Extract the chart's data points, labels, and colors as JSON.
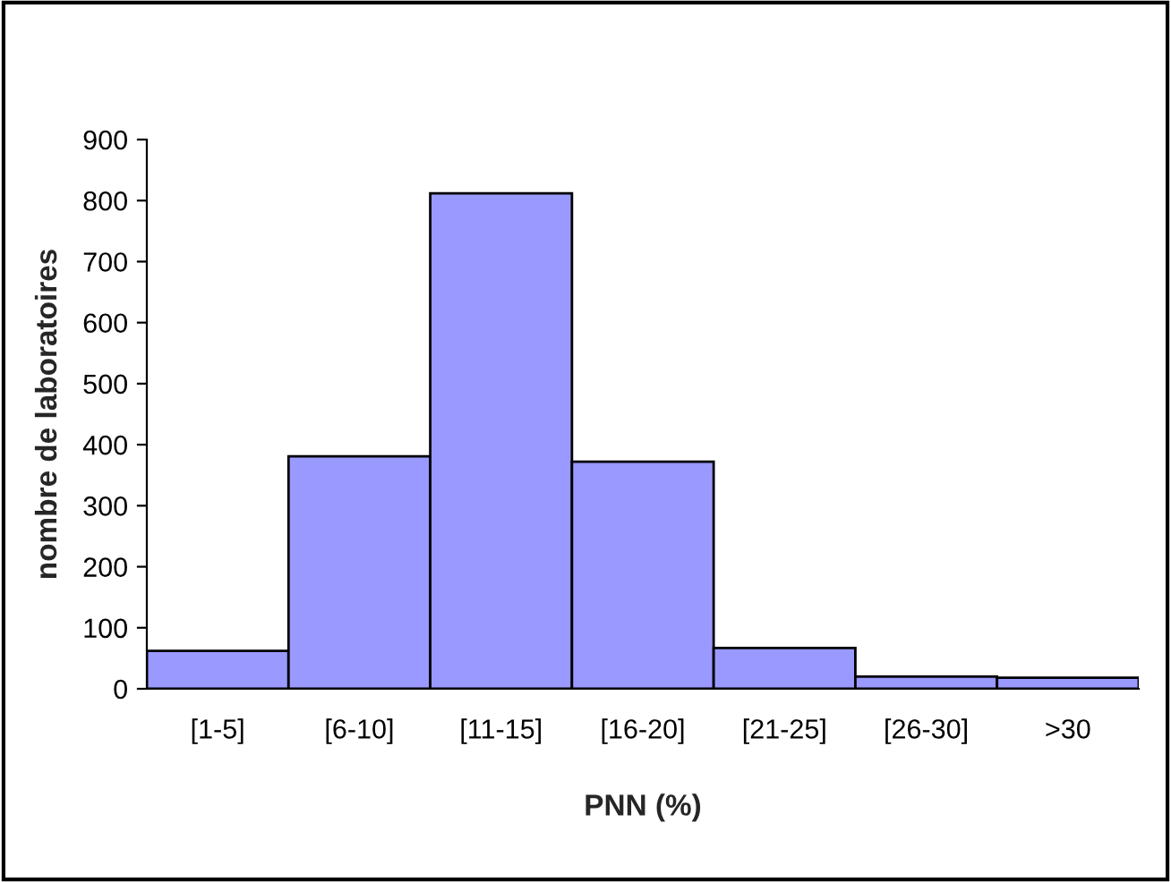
{
  "chart_data": {
    "type": "bar",
    "xlabel": "PNN (%)",
    "ylabel": "nombre de laboratoires",
    "categories": [
      "[1-5]",
      "[6-10]",
      "[11-15]",
      "[16-20]",
      "[21-25]",
      "[26-30]",
      ">30"
    ],
    "values": [
      62,
      381,
      812,
      372,
      67,
      20,
      18
    ],
    "color": "#9999ff",
    "ylim": [
      0,
      900
    ],
    "yticks": [
      0,
      100,
      200,
      300,
      400,
      500,
      600,
      700,
      800,
      900
    ],
    "grid": false,
    "legend": false
  }
}
